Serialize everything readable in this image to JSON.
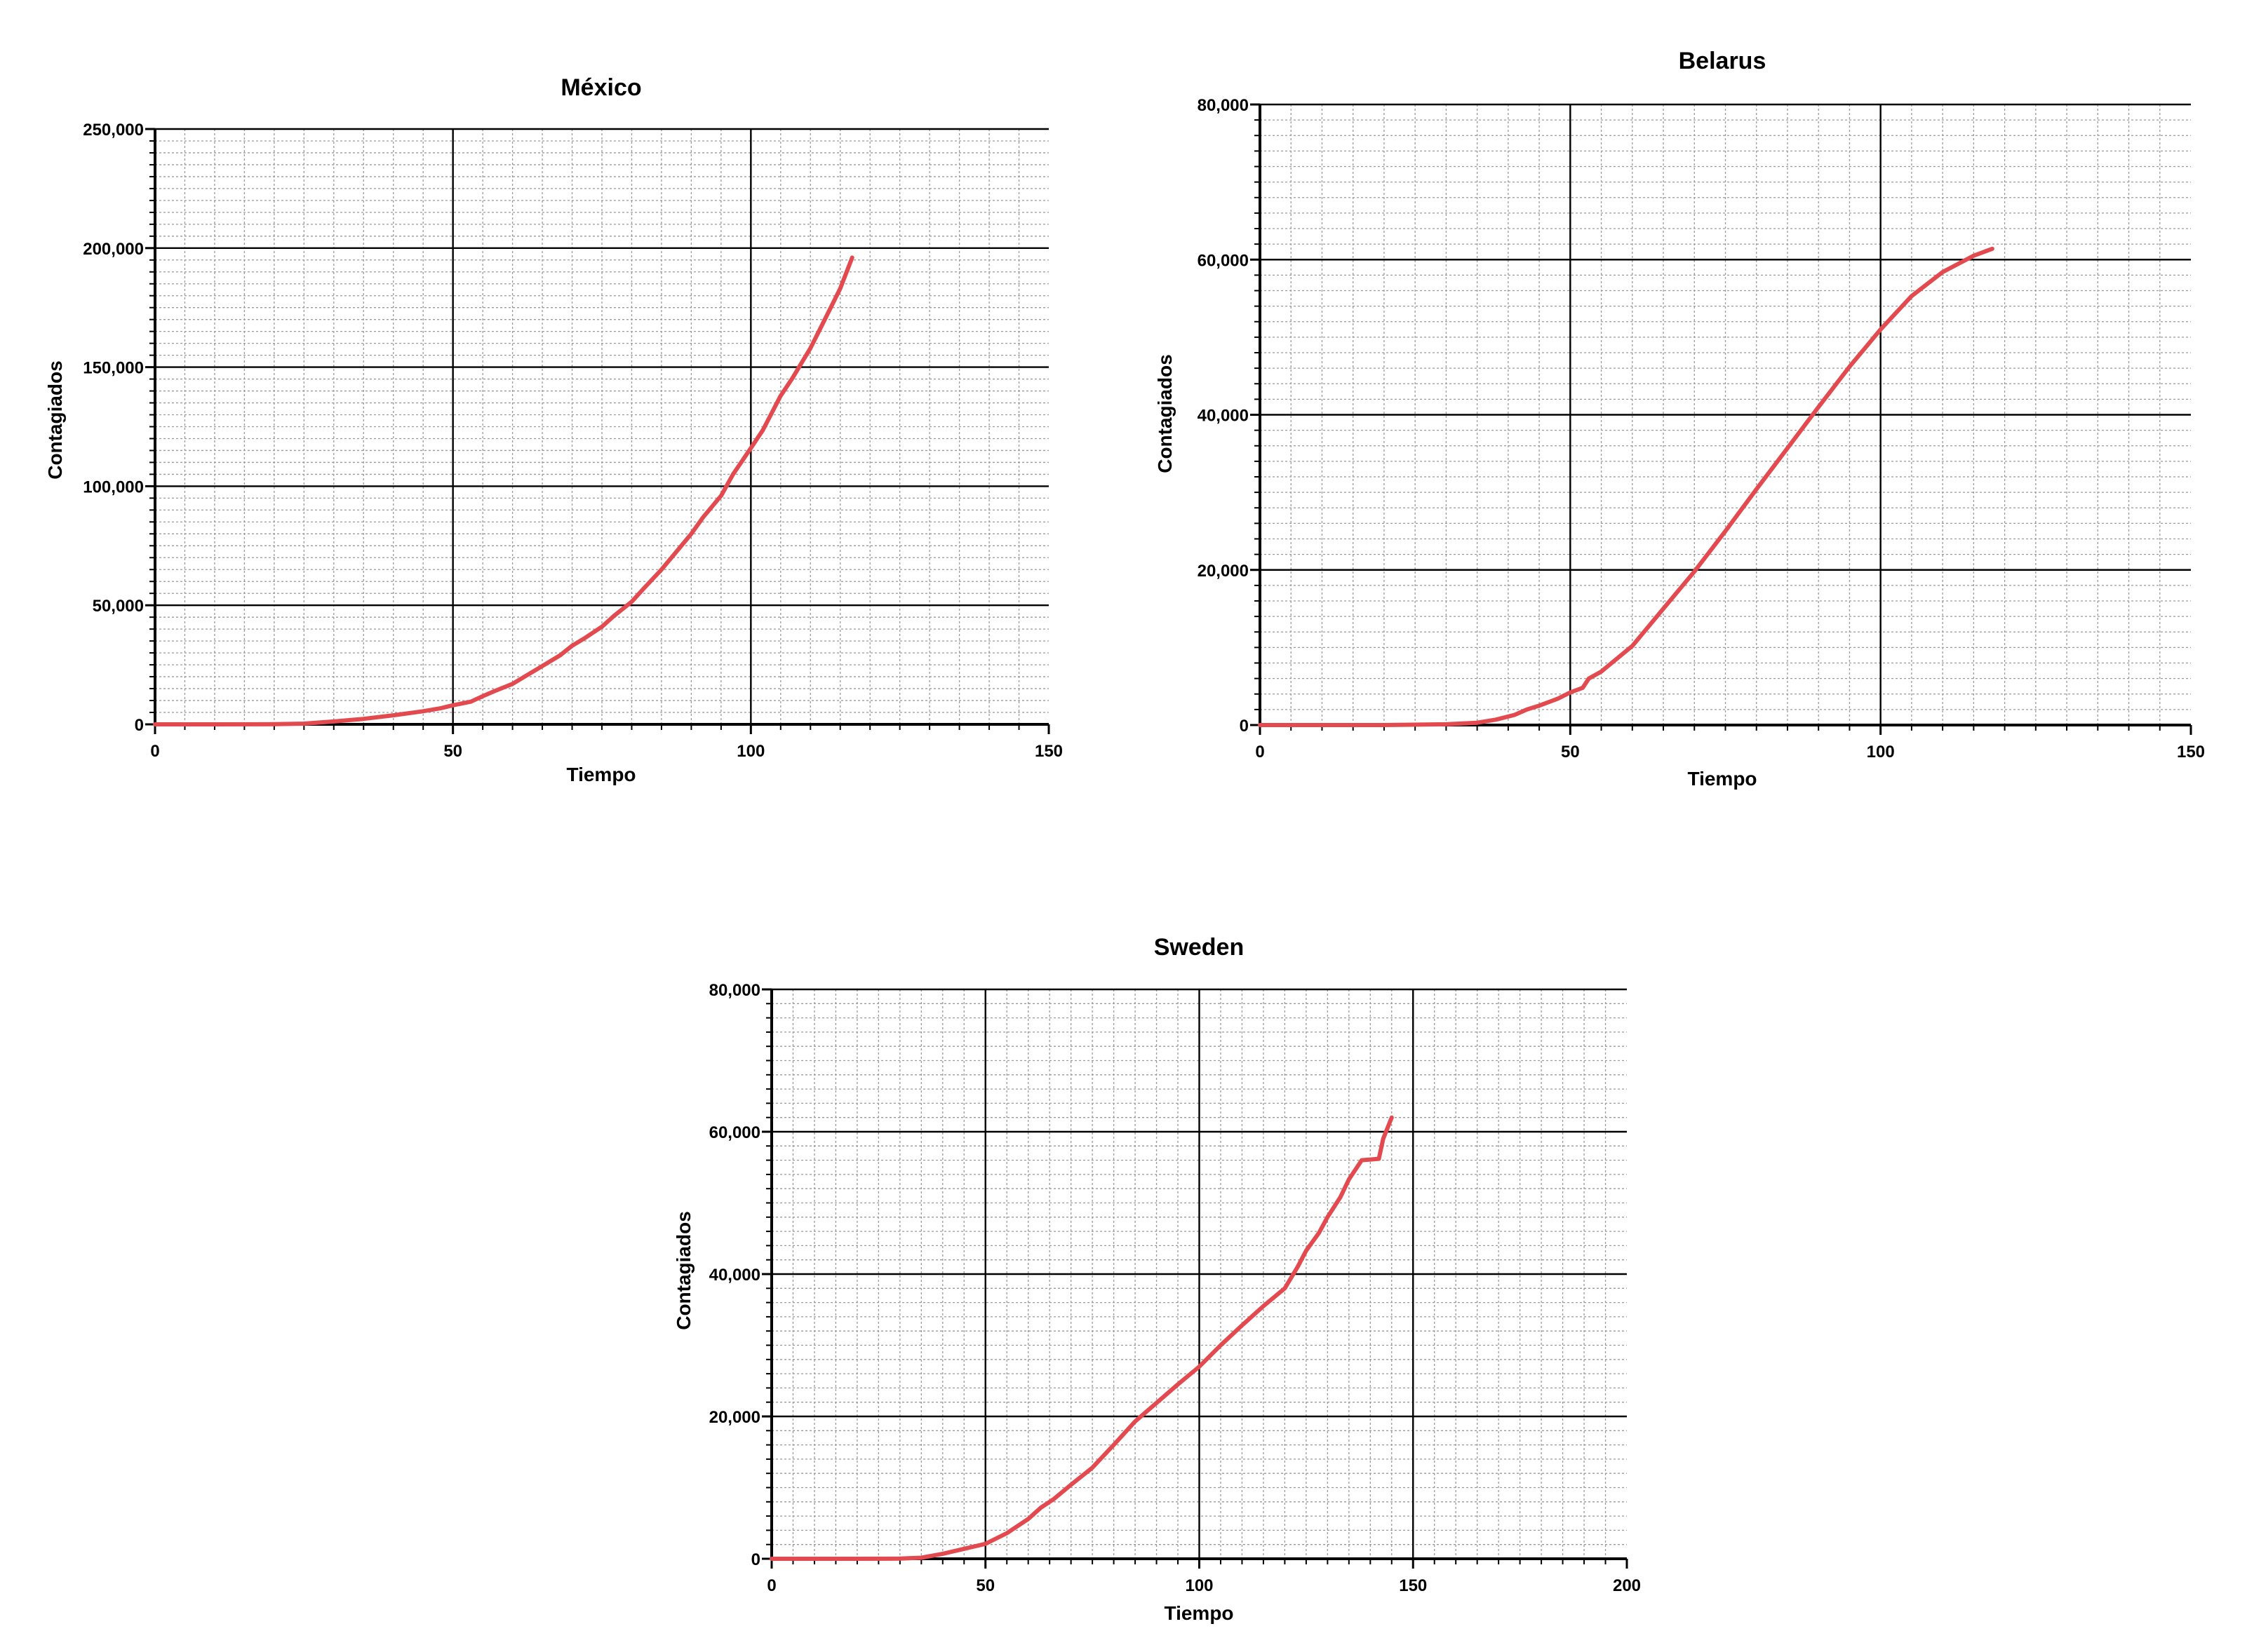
{
  "chart_data": [
    {
      "type": "line",
      "title": "México",
      "xlabel": "Tiempo",
      "ylabel": "Contagiados",
      "xlim": [
        0,
        150
      ],
      "ylim": [
        0,
        250000
      ],
      "x_ticks": [
        0,
        50,
        100,
        150
      ],
      "y_ticks": [
        0,
        50000,
        100000,
        150000,
        200000,
        250000
      ],
      "x_tick_labels": [
        "0",
        "50",
        "100",
        "150"
      ],
      "y_tick_labels": [
        "0",
        "50,000",
        "100,000",
        "150,000",
        "200,000",
        "250,000"
      ],
      "grid": true,
      "color": "#e34a4f",
      "series": [
        {
          "x": [
            0,
            10,
            20,
            25,
            30,
            35,
            40,
            45,
            48,
            50,
            53,
            55,
            57,
            60,
            62,
            65,
            68,
            70,
            72,
            75,
            77,
            80,
            82,
            85,
            87,
            90,
            92,
            95,
            97,
            100,
            102,
            105,
            107,
            110,
            112,
            115,
            117
          ],
          "y": [
            0,
            0,
            50,
            300,
            1200,
            2300,
            3800,
            5500,
            6800,
            8000,
            9500,
            11800,
            14000,
            17000,
            20000,
            24500,
            29000,
            33000,
            36000,
            41000,
            45500,
            51500,
            57000,
            65000,
            71000,
            80000,
            87000,
            96000,
            105000,
            116000,
            123500,
            138000,
            145500,
            158000,
            168000,
            183000,
            196000
          ]
        }
      ]
    },
    {
      "type": "line",
      "title": "Belarus",
      "xlabel": "Tiempo",
      "ylabel": "Contagiados",
      "xlim": [
        0,
        150
      ],
      "ylim": [
        0,
        80000
      ],
      "x_ticks": [
        0,
        50,
        100,
        150
      ],
      "y_ticks": [
        0,
        20000,
        40000,
        60000,
        80000
      ],
      "x_tick_labels": [
        "0",
        "50",
        "100",
        "150"
      ],
      "y_tick_labels": [
        "0",
        "20,000",
        "40,000",
        "60,000",
        "80,000"
      ],
      "grid": true,
      "color": "#e34a4f",
      "series": [
        {
          "x": [
            0,
            20,
            30,
            35,
            38,
            41,
            43,
            45,
            48,
            50,
            52,
            53,
            55,
            60,
            65,
            70,
            75,
            80,
            85,
            90,
            95,
            100,
            105,
            110,
            115,
            118
          ],
          "y": [
            0,
            0,
            100,
            300,
            700,
            1300,
            2000,
            2500,
            3400,
            4200,
            4800,
            6000,
            6900,
            10200,
            15000,
            19800,
            25000,
            30400,
            35700,
            41000,
            46200,
            51000,
            55300,
            58400,
            60500,
            61400
          ]
        }
      ]
    },
    {
      "type": "line",
      "title": "Sweden",
      "xlabel": "Tiempo",
      "ylabel": "Contagiados",
      "xlim": [
        0,
        200
      ],
      "ylim": [
        0,
        80000
      ],
      "x_ticks": [
        0,
        50,
        100,
        150,
        200
      ],
      "y_ticks": [
        0,
        20000,
        40000,
        60000,
        80000
      ],
      "x_tick_labels": [
        "0",
        "50",
        "100",
        "150",
        "200"
      ],
      "y_tick_labels": [
        "0",
        "20,000",
        "40,000",
        "60,000",
        "80,000"
      ],
      "grid": true,
      "color": "#e34a4f",
      "series": [
        {
          "x": [
            0,
            20,
            30,
            35,
            40,
            45,
            50,
            55,
            60,
            63,
            66,
            70,
            75,
            80,
            85,
            90,
            95,
            100,
            105,
            110,
            115,
            120,
            123,
            125,
            128,
            130,
            133,
            135,
            138,
            140,
            142,
            143,
            145
          ],
          "y": [
            0,
            0,
            20,
            150,
            700,
            1400,
            2100,
            3600,
            5600,
            7200,
            8400,
            10400,
            12800,
            16000,
            19300,
            21900,
            24500,
            27000,
            30000,
            32800,
            35500,
            38000,
            41000,
            43300,
            45800,
            48000,
            50800,
            53300,
            56000,
            56100,
            56200,
            59000,
            62000
          ]
        }
      ]
    }
  ]
}
